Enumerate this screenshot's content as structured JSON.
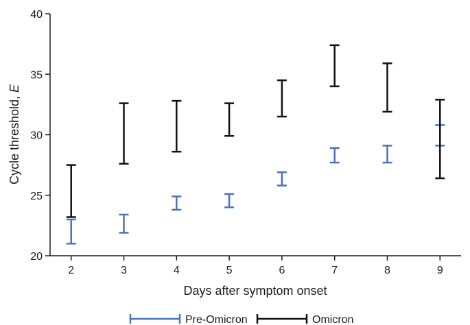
{
  "chart_data": {
    "type": "errorbar",
    "xlabel": "Days after symptom onset",
    "ylabel_main": "Cycle threshold, ",
    "ylabel_var": "E",
    "x": [
      2,
      3,
      4,
      5,
      6,
      7,
      8,
      9
    ],
    "xlim": [
      1.6,
      9.4
    ],
    "ylim": [
      20,
      40
    ],
    "yticks": [
      20,
      25,
      30,
      35,
      40
    ],
    "grid": false,
    "legend_position": "bottom-center",
    "series": [
      {
        "name": "Pre-Omicron",
        "color": "#4a72b8",
        "low": [
          21.0,
          21.9,
          23.8,
          24.0,
          25.8,
          27.7,
          27.7,
          29.1
        ],
        "high": [
          23.0,
          23.4,
          24.9,
          25.1,
          26.9,
          28.9,
          29.1,
          30.8
        ]
      },
      {
        "name": "Omicron",
        "color": "#111111",
        "low": [
          23.2,
          27.6,
          28.6,
          29.9,
          31.5,
          34.0,
          31.9,
          26.4
        ],
        "high": [
          27.5,
          32.6,
          32.8,
          32.6,
          34.5,
          37.4,
          35.9,
          32.9
        ]
      }
    ]
  }
}
